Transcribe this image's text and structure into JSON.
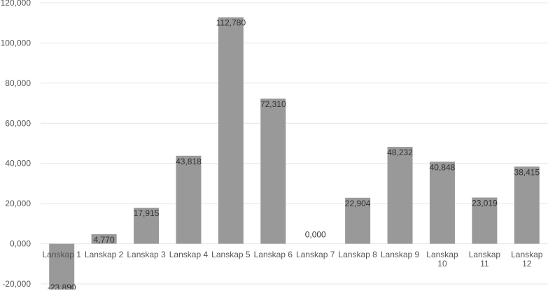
{
  "chart_data": {
    "type": "bar",
    "title": "",
    "xlabel": "",
    "ylabel": "",
    "categories": [
      [
        "Lanskap 1"
      ],
      [
        "Lanskap 2"
      ],
      [
        "Lanskap 3"
      ],
      [
        "Lanskap 4"
      ],
      [
        "Lanskap 5"
      ],
      [
        "Lanskap 6"
      ],
      [
        "Lanskap 7"
      ],
      [
        "Lanskap 8"
      ],
      [
        "Lanskap 9"
      ],
      [
        "Lanskap",
        "10"
      ],
      [
        "Lanskap",
        "11"
      ],
      [
        "Lanskap",
        "12"
      ]
    ],
    "values": [
      -23.89,
      4.77,
      17.915,
      43.818,
      112.78,
      72.31,
      0.0,
      22.904,
      48.232,
      40.848,
      23.019,
      38.415
    ],
    "value_labels": [
      "-23,890",
      "4,770",
      "17,915",
      "43,818",
      "112,780",
      "72,310",
      "0,000",
      "22,904",
      "48,232",
      "40,848",
      "23,019",
      "38,415"
    ],
    "yticks": [
      -20,
      0,
      20,
      40,
      60,
      80,
      100,
      120
    ],
    "ytick_labels": [
      "-20,000",
      "0,000",
      "20,000",
      "40,000",
      "60,000",
      "80,000",
      "100,000",
      "120,000"
    ],
    "ylim": [
      -20,
      120
    ],
    "grid": true,
    "legend": "none",
    "bar_color": "#999999",
    "grid_color": "#e6e6e6"
  }
}
